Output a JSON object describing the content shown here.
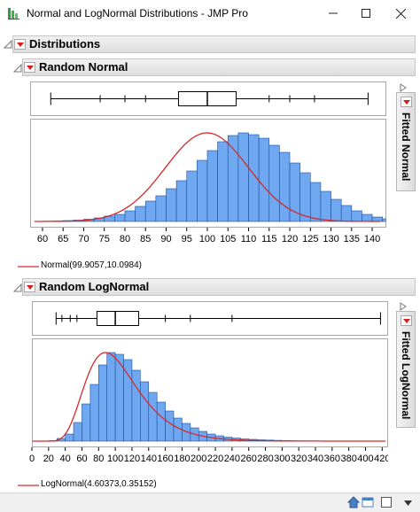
{
  "window": {
    "title": "Normal and LogNormal Distributions - JMP Pro"
  },
  "report": {
    "title": "Distributions"
  },
  "colors": {
    "bar_fill": "#6fa8f0",
    "bar_stroke": "#1c4f9a",
    "curve": "#d42a2a"
  },
  "sections": [
    {
      "title": "Random Normal",
      "fit_tab": "Fitted Normal",
      "legend": "Normal(99.9057,10.0984)"
    },
    {
      "title": "Random LogNormal",
      "fit_tab": "Fitted LogNormal",
      "legend": "LogNormal(4.60373,0.35152)"
    }
  ],
  "chart_data": [
    {
      "type": "bar",
      "name_hint": "Random Normal histogram",
      "x_ticks": [
        60,
        65,
        70,
        75,
        80,
        85,
        90,
        95,
        100,
        105,
        110,
        115,
        120,
        125,
        130,
        135,
        140
      ],
      "xlim": [
        57,
        143
      ],
      "bin_width": 2.5,
      "bin_start": 60,
      "values": [
        0.3,
        0.5,
        1,
        1.5,
        2.5,
        4,
        6,
        8,
        12,
        17,
        23,
        29,
        37,
        46,
        57,
        69,
        80,
        90,
        97,
        100,
        98,
        94,
        86,
        78,
        66,
        55,
        44,
        34,
        25,
        18,
        12,
        8,
        5,
        3,
        2,
        1,
        0.5
      ],
      "ymax": 108,
      "fit": {
        "distribution": "Normal",
        "mu": 99.9057,
        "sigma": 10.0984
      },
      "box": {
        "whisker_low": 62,
        "q1": 93,
        "median": 100,
        "q3": 107,
        "whisker_high": 139,
        "outliers": [
          74,
          80,
          85,
          115,
          120,
          126
        ]
      }
    },
    {
      "type": "bar",
      "name_hint": "Random LogNormal histogram",
      "x_ticks": [
        0,
        20,
        40,
        60,
        80,
        100,
        120,
        140,
        160,
        180,
        200,
        220,
        240,
        260,
        280,
        300,
        320,
        340,
        360,
        380,
        400,
        420
      ],
      "xlim": [
        0,
        425
      ],
      "bin_width": 10,
      "bin_start": 20,
      "values": [
        0.5,
        3,
        8,
        21,
        42,
        64,
        86,
        100,
        98,
        92,
        80,
        67,
        55,
        44,
        34,
        26,
        20,
        15,
        11,
        8,
        6,
        4.5,
        3.5,
        2.5,
        2,
        1.5,
        1.2,
        0.9,
        0.6,
        0.4,
        0.3
      ],
      "ymax": 108,
      "fit": {
        "distribution": "LogNormal",
        "mu": 4.60373,
        "sigma": 0.35152
      },
      "box": {
        "whisker_low": 29,
        "q1": 78,
        "median": 100,
        "q3": 128,
        "whisker_high": 418,
        "outliers": [
          36,
          46,
          54,
          160,
          190,
          240
        ]
      }
    }
  ]
}
